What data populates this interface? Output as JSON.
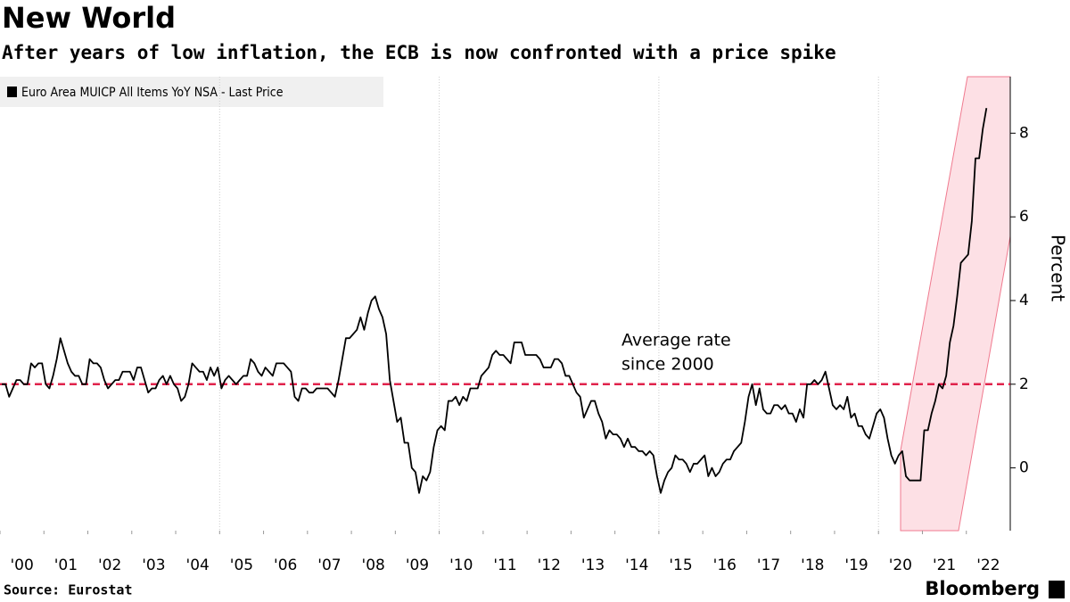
{
  "chart_data": {
    "type": "line",
    "title": "New World",
    "subtitle": "After years of low inflation, the ECB is now confronted with a price spike",
    "y_label": "Percent",
    "source": "Source: Eurostat",
    "brand": "Bloomberg",
    "xlim": [
      2000,
      2023
    ],
    "xticks": [
      {
        "value": 2000,
        "label": "'00"
      },
      {
        "value": 2001,
        "label": "'01"
      },
      {
        "value": 2002,
        "label": "'02"
      },
      {
        "value": 2003,
        "label": "'03"
      },
      {
        "value": 2004,
        "label": "'04"
      },
      {
        "value": 2005,
        "label": "'05"
      },
      {
        "value": 2006,
        "label": "'06"
      },
      {
        "value": 2007,
        "label": "'07"
      },
      {
        "value": 2008,
        "label": "'08"
      },
      {
        "value": 2009,
        "label": "'09"
      },
      {
        "value": 2010,
        "label": "'10"
      },
      {
        "value": 2011,
        "label": "'11"
      },
      {
        "value": 2012,
        "label": "'12"
      },
      {
        "value": 2013,
        "label": "'13"
      },
      {
        "value": 2014,
        "label": "'14"
      },
      {
        "value": 2015,
        "label": "'15"
      },
      {
        "value": 2016,
        "label": "'16"
      },
      {
        "value": 2017,
        "label": "'17"
      },
      {
        "value": 2018,
        "label": "'18"
      },
      {
        "value": 2019,
        "label": "'19"
      },
      {
        "value": 2020,
        "label": "'20"
      },
      {
        "value": 2021,
        "label": "'21"
      },
      {
        "value": 2022,
        "label": "'22"
      }
    ],
    "xgrid": [
      2005,
      2010,
      2015,
      2020
    ],
    "ylim": [
      -1.5,
      9.35
    ],
    "yticks": [
      0,
      2,
      4,
      6,
      8
    ],
    "axis_side": "right",
    "average_line": {
      "value": 2,
      "label": [
        "Average rate",
        "since 2000"
      ],
      "color": "#e0234b"
    },
    "x": [
      "2000-01",
      "2000-02",
      "2000-03",
      "2000-04",
      "2000-05",
      "2000-06",
      "2000-07",
      "2000-08",
      "2000-09",
      "2000-10",
      "2000-11",
      "2000-12",
      "2001-01",
      "2001-02",
      "2001-03",
      "2001-04",
      "2001-05",
      "2001-06",
      "2001-07",
      "2001-08",
      "2001-09",
      "2001-10",
      "2001-11",
      "2001-12",
      "2002-01",
      "2002-02",
      "2002-03",
      "2002-04",
      "2002-05",
      "2002-06",
      "2002-07",
      "2002-08",
      "2002-09",
      "2002-10",
      "2002-11",
      "2002-12",
      "2003-01",
      "2003-02",
      "2003-03",
      "2003-04",
      "2003-05",
      "2003-06",
      "2003-07",
      "2003-08",
      "2003-09",
      "2003-10",
      "2003-11",
      "2003-12",
      "2004-01",
      "2004-02",
      "2004-03",
      "2004-04",
      "2004-05",
      "2004-06",
      "2004-07",
      "2004-08",
      "2004-09",
      "2004-10",
      "2004-11",
      "2004-12",
      "2005-01",
      "2005-02",
      "2005-03",
      "2005-04",
      "2005-05",
      "2005-06",
      "2005-07",
      "2005-08",
      "2005-09",
      "2005-10",
      "2005-11",
      "2005-12",
      "2006-01",
      "2006-02",
      "2006-03",
      "2006-04",
      "2006-05",
      "2006-06",
      "2006-07",
      "2006-08",
      "2006-09",
      "2006-10",
      "2006-11",
      "2006-12",
      "2007-01",
      "2007-02",
      "2007-03",
      "2007-04",
      "2007-05",
      "2007-06",
      "2007-07",
      "2007-08",
      "2007-09",
      "2007-10",
      "2007-11",
      "2007-12",
      "2008-01",
      "2008-02",
      "2008-03",
      "2008-04",
      "2008-05",
      "2008-06",
      "2008-07",
      "2008-08",
      "2008-09",
      "2008-10",
      "2008-11",
      "2008-12",
      "2009-01",
      "2009-02",
      "2009-03",
      "2009-04",
      "2009-05",
      "2009-06",
      "2009-07",
      "2009-08",
      "2009-09",
      "2009-10",
      "2009-11",
      "2009-12",
      "2010-01",
      "2010-02",
      "2010-03",
      "2010-04",
      "2010-05",
      "2010-06",
      "2010-07",
      "2010-08",
      "2010-09",
      "2010-10",
      "2010-11",
      "2010-12",
      "2011-01",
      "2011-02",
      "2011-03",
      "2011-04",
      "2011-05",
      "2011-06",
      "2011-07",
      "2011-08",
      "2011-09",
      "2011-10",
      "2011-11",
      "2011-12",
      "2012-01",
      "2012-02",
      "2012-03",
      "2012-04",
      "2012-05",
      "2012-06",
      "2012-07",
      "2012-08",
      "2012-09",
      "2012-10",
      "2012-11",
      "2012-12",
      "2013-01",
      "2013-02",
      "2013-03",
      "2013-04",
      "2013-05",
      "2013-06",
      "2013-07",
      "2013-08",
      "2013-09",
      "2013-10",
      "2013-11",
      "2013-12",
      "2014-01",
      "2014-02",
      "2014-03",
      "2014-04",
      "2014-05",
      "2014-06",
      "2014-07",
      "2014-08",
      "2014-09",
      "2014-10",
      "2014-11",
      "2014-12",
      "2015-01",
      "2015-02",
      "2015-03",
      "2015-04",
      "2015-05",
      "2015-06",
      "2015-07",
      "2015-08",
      "2015-09",
      "2015-10",
      "2015-11",
      "2015-12",
      "2016-01",
      "2016-02",
      "2016-03",
      "2016-04",
      "2016-05",
      "2016-06",
      "2016-07",
      "2016-08",
      "2016-09",
      "2016-10",
      "2016-11",
      "2016-12",
      "2017-01",
      "2017-02",
      "2017-03",
      "2017-04",
      "2017-05",
      "2017-06",
      "2017-07",
      "2017-08",
      "2017-09",
      "2017-10",
      "2017-11",
      "2017-12",
      "2018-01",
      "2018-02",
      "2018-03",
      "2018-04",
      "2018-05",
      "2018-06",
      "2018-07",
      "2018-08",
      "2018-09",
      "2018-10",
      "2018-11",
      "2018-12",
      "2019-01",
      "2019-02",
      "2019-03",
      "2019-04",
      "2019-05",
      "2019-06",
      "2019-07",
      "2019-08",
      "2019-09",
      "2019-10",
      "2019-11",
      "2019-12",
      "2020-01",
      "2020-02",
      "2020-03",
      "2020-04",
      "2020-05",
      "2020-06",
      "2020-07",
      "2020-08",
      "2020-09",
      "2020-10",
      "2020-11",
      "2020-12",
      "2021-01",
      "2021-02",
      "2021-03",
      "2021-04",
      "2021-05",
      "2021-06",
      "2021-07",
      "2021-08",
      "2021-09",
      "2021-10",
      "2021-11",
      "2021-12",
      "2022-01",
      "2022-02",
      "2022-03",
      "2022-04",
      "2022-05",
      "2022-06"
    ],
    "series": [
      {
        "name": "Euro Area MUICP All Items YoY NSA - Last Price",
        "color": "#000000",
        "values": [
          2.0,
          2.0,
          1.7,
          1.9,
          2.1,
          2.1,
          2.0,
          2.0,
          2.5,
          2.4,
          2.5,
          2.5,
          2.0,
          1.9,
          2.2,
          2.6,
          3.1,
          2.8,
          2.5,
          2.3,
          2.2,
          2.2,
          2.0,
          2.0,
          2.6,
          2.5,
          2.5,
          2.4,
          2.1,
          1.9,
          2.0,
          2.1,
          2.1,
          2.3,
          2.3,
          2.3,
          2.1,
          2.4,
          2.4,
          2.1,
          1.8,
          1.9,
          1.9,
          2.1,
          2.2,
          2.0,
          2.2,
          2.0,
          1.9,
          1.6,
          1.7,
          2.0,
          2.5,
          2.4,
          2.3,
          2.3,
          2.1,
          2.4,
          2.2,
          2.4,
          1.9,
          2.1,
          2.2,
          2.1,
          2.0,
          2.1,
          2.2,
          2.2,
          2.6,
          2.5,
          2.3,
          2.2,
          2.4,
          2.3,
          2.2,
          2.5,
          2.5,
          2.5,
          2.4,
          2.3,
          1.7,
          1.6,
          1.9,
          1.9,
          1.8,
          1.8,
          1.9,
          1.9,
          1.9,
          1.9,
          1.8,
          1.7,
          2.1,
          2.6,
          3.1,
          3.1,
          3.2,
          3.3,
          3.6,
          3.3,
          3.7,
          4.0,
          4.1,
          3.8,
          3.6,
          3.2,
          2.1,
          1.6,
          1.1,
          1.2,
          0.6,
          0.6,
          0.0,
          -0.1,
          -0.6,
          -0.2,
          -0.3,
          -0.1,
          0.5,
          0.9,
          1.0,
          0.9,
          1.6,
          1.6,
          1.7,
          1.5,
          1.7,
          1.6,
          1.9,
          1.9,
          1.9,
          2.2,
          2.3,
          2.4,
          2.7,
          2.8,
          2.7,
          2.7,
          2.6,
          2.5,
          3.0,
          3.0,
          3.0,
          2.7,
          2.7,
          2.7,
          2.7,
          2.6,
          2.4,
          2.4,
          2.4,
          2.6,
          2.6,
          2.5,
          2.2,
          2.2,
          2.0,
          1.8,
          1.7,
          1.2,
          1.4,
          1.6,
          1.6,
          1.3,
          1.1,
          0.7,
          0.9,
          0.8,
          0.8,
          0.7,
          0.5,
          0.7,
          0.5,
          0.5,
          0.4,
          0.4,
          0.3,
          0.4,
          0.3,
          -0.2,
          -0.6,
          -0.3,
          -0.1,
          0.0,
          0.3,
          0.2,
          0.2,
          0.1,
          -0.1,
          0.1,
          0.1,
          0.2,
          0.3,
          -0.2,
          0.0,
          -0.2,
          -0.1,
          0.1,
          0.2,
          0.2,
          0.4,
          0.5,
          0.6,
          1.1,
          1.7,
          2.0,
          1.5,
          1.9,
          1.4,
          1.3,
          1.3,
          1.5,
          1.5,
          1.4,
          1.5,
          1.3,
          1.3,
          1.1,
          1.4,
          1.2,
          2.0,
          2.0,
          2.1,
          2.0,
          2.1,
          2.3,
          1.9,
          1.5,
          1.4,
          1.5,
          1.4,
          1.7,
          1.2,
          1.3,
          1.0,
          1.0,
          0.8,
          0.7,
          1.0,
          1.3,
          1.4,
          1.2,
          0.7,
          0.3,
          0.1,
          0.3,
          0.4,
          -0.2,
          -0.3,
          -0.3,
          -0.3,
          -0.3,
          0.9,
          0.9,
          1.3,
          1.6,
          2.0,
          1.9,
          2.2,
          3.0,
          3.4,
          4.1,
          4.9,
          5.0,
          5.1,
          5.9,
          7.4,
          7.4,
          8.1,
          8.6
        ]
      }
    ]
  }
}
